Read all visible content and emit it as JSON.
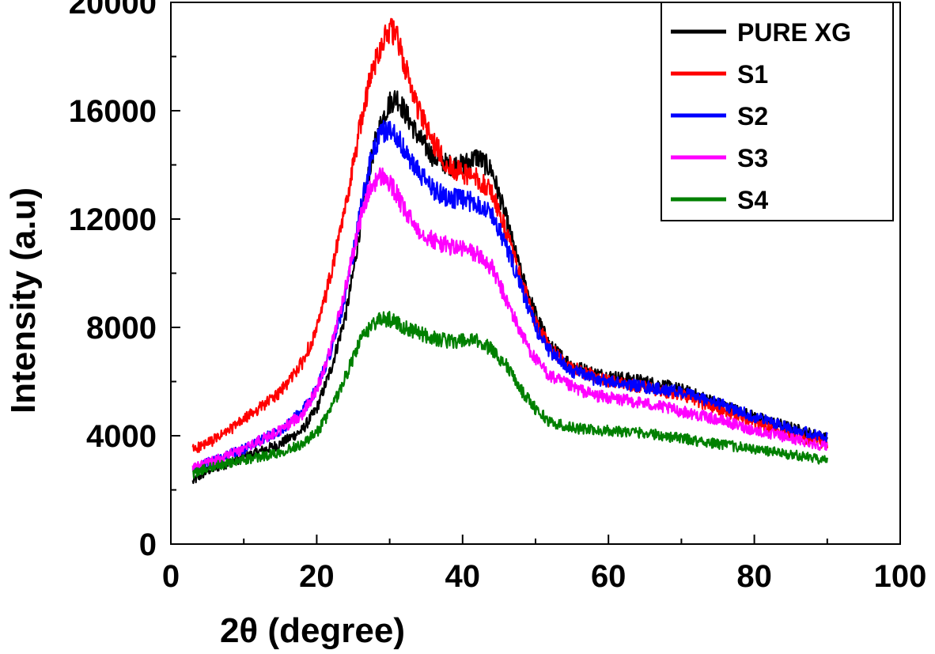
{
  "chart_data": {
    "type": "line",
    "title": "",
    "xlabel": "2θ (degree)",
    "ylabel": "Intensity (a.u)",
    "xlim": [
      0,
      100
    ],
    "ylim": [
      0,
      20000
    ],
    "xticks": [
      0,
      20,
      40,
      60,
      80,
      100
    ],
    "yticks": [
      0,
      4000,
      8000,
      12000,
      16000,
      20000
    ],
    "xtick_labels": [
      "0",
      "20",
      "40",
      "60",
      "80",
      "100"
    ],
    "ytick_labels": [
      "0",
      "4000",
      "8000",
      "12000",
      "16000",
      "20000"
    ],
    "grid": false,
    "legend_position": "top-right",
    "x": [
      3,
      5,
      8,
      10,
      12,
      15,
      18,
      20,
      22,
      24,
      25,
      26,
      27,
      28,
      29,
      30,
      31,
      32,
      34,
      36,
      38,
      40,
      42,
      44,
      46,
      48,
      50,
      52,
      55,
      58,
      60,
      65,
      70,
      75,
      80,
      85,
      90
    ],
    "series": [
      {
        "name": "PURE XG",
        "color": "#000000",
        "values": [
          2300,
          2700,
          3000,
          3200,
          3400,
          3700,
          4200,
          5000,
          6500,
          8500,
          10000,
          11800,
          13500,
          14800,
          15700,
          16300,
          16500,
          16000,
          15000,
          14300,
          14000,
          14000,
          14300,
          13800,
          12000,
          10000,
          8500,
          7300,
          6600,
          6300,
          6200,
          6000,
          5700,
          5200,
          4700,
          4300,
          3900
        ]
      },
      {
        "name": "S1",
        "color": "#ff0000",
        "values": [
          3500,
          3700,
          4200,
          4600,
          5000,
          5600,
          6700,
          7900,
          10000,
          12500,
          14000,
          15500,
          16800,
          17800,
          18600,
          19000,
          18700,
          17700,
          16000,
          14800,
          14000,
          13700,
          13500,
          13000,
          11500,
          9800,
          8200,
          7200,
          6500,
          6200,
          6000,
          5800,
          5500,
          5000,
          4500,
          4000,
          3700
        ]
      },
      {
        "name": "S2",
        "color": "#0000ff",
        "values": [
          2700,
          3000,
          3300,
          3500,
          3800,
          4200,
          4900,
          5700,
          7200,
          9200,
          10700,
          12300,
          13700,
          14700,
          15200,
          15300,
          15100,
          14500,
          13700,
          13100,
          12800,
          12700,
          12600,
          12200,
          11000,
          9500,
          8000,
          7100,
          6400,
          6100,
          6000,
          5800,
          5600,
          5200,
          4700,
          4300,
          3900
        ]
      },
      {
        "name": "S3",
        "color": "#ff00ff",
        "values": [
          2800,
          3000,
          3300,
          3500,
          3800,
          4200,
          4800,
          5700,
          7300,
          9500,
          10800,
          12000,
          12900,
          13400,
          13600,
          13300,
          12900,
          12300,
          11600,
          11200,
          11000,
          10900,
          10700,
          10200,
          9000,
          7800,
          6800,
          6200,
          5800,
          5500,
          5400,
          5200,
          4900,
          4600,
          4200,
          3900,
          3600
        ]
      },
      {
        "name": "S4",
        "color": "#008000",
        "values": [
          2600,
          2800,
          3000,
          3100,
          3200,
          3400,
          3700,
          4100,
          5000,
          6200,
          6900,
          7500,
          7900,
          8200,
          8300,
          8300,
          8200,
          8000,
          7800,
          7600,
          7500,
          7500,
          7500,
          7200,
          6600,
          5700,
          5000,
          4500,
          4300,
          4200,
          4200,
          4100,
          3900,
          3700,
          3500,
          3300,
          3100
        ]
      }
    ]
  }
}
